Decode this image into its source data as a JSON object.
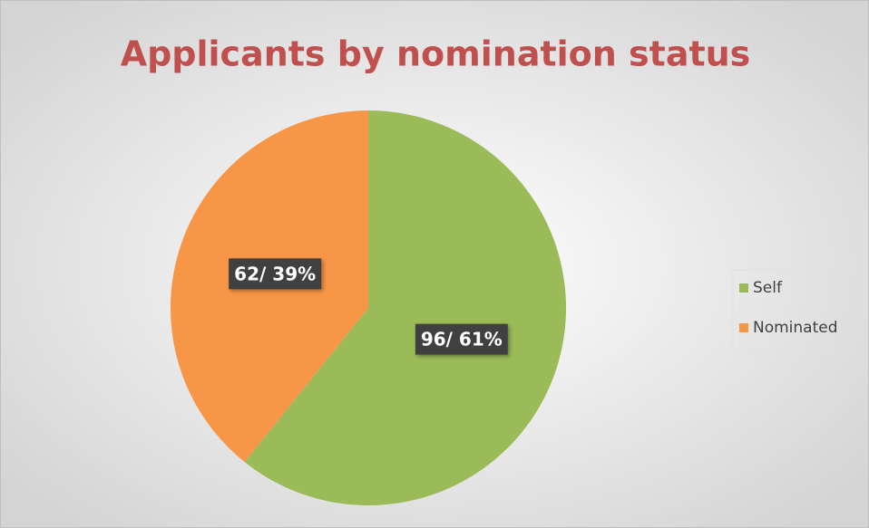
{
  "chart_data": {
    "type": "pie",
    "title": "Applicants by nomination status",
    "categories": [
      "Self",
      "Nominated"
    ],
    "values": [
      96,
      62
    ],
    "value_labels": [
      "96/ 61%",
      "62/ 39%"
    ],
    "colors": [
      "#9bbb59",
      "#f79646"
    ],
    "legend": "right"
  }
}
